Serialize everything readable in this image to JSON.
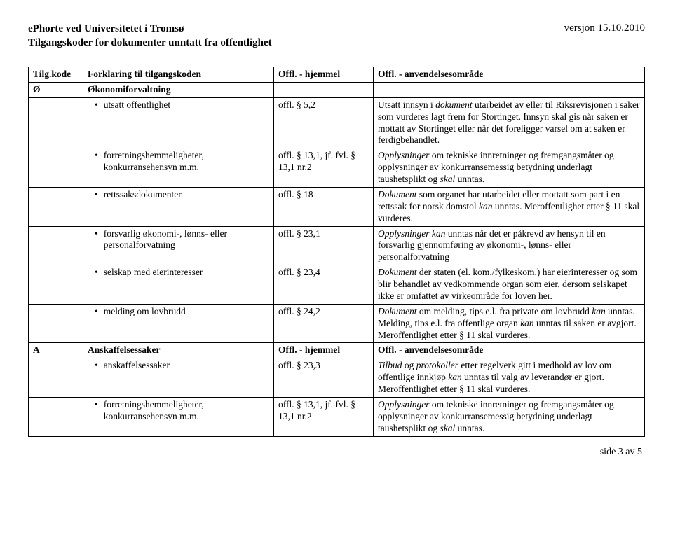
{
  "header": {
    "line1": "ePhorte ved Universitetet i Tromsø",
    "line2": "Tilgangskoder for dokumenter unntatt fra offentlighet",
    "version": "versjon 15.10.2010"
  },
  "columns": {
    "c1": "Tilg.kode",
    "c2": "Forklaring til tilgangskoden",
    "c3": "Offl. - hjemmel",
    "c4": "Offl. - anvendelsesområde"
  },
  "sections": [
    {
      "code": "Ø",
      "title": "Økonomiforvaltning",
      "rows": [
        {
          "bullet": "utsatt offentlighet",
          "hjemmel": "offl. § 5,2",
          "omraade_html": "Utsatt innsyn i <span class=\"italic\">dokument</span> utarbeidet av eller til Riksrevisjonen i saker som vurderes lagt frem for Stortinget. Innsyn skal gis når saken er mottatt av Stortinget eller når det foreligger varsel om at saken er ferdigbehandlet."
        },
        {
          "bullet": "forretningshemmeligheter, konkurransehensyn m.m.",
          "hjemmel": "offl. § 13,1, jf. fvl. § 13,1 nr.2",
          "omraade_html": "<span class=\"italic\">Opplysninger</span> om tekniske innretninger og fremgangsmåter og opplysninger av konkurransemessig betydning underlagt taushetsplikt og <span class=\"italic\">skal</span> unntas."
        },
        {
          "bullet": "rettssaksdokumenter",
          "hjemmel": "offl. § 18",
          "omraade_html": "<span class=\"italic\">Dokument</span> som organet har utarbeidet eller mottatt som part i en rettssak for norsk domstol <span class=\"italic\">kan</span> unntas. Meroffentlighet etter § 11 skal vurderes."
        },
        {
          "bullet": "forsvarlig økonomi-, lønns- eller personalforvatning",
          "hjemmel": "offl. § 23,1",
          "omraade_html": "<span class=\"italic\">Opplysninger kan</span> unntas når det er påkrevd av hensyn til en forsvarlig gjennomføring av økonomi-, lønns- eller personalforvatning"
        },
        {
          "bullet": "selskap med eierinteresser",
          "hjemmel": "offl. § 23,4",
          "omraade_html": "<span class=\"italic\">Dokument</span> der staten (el. kom./fylkeskom.) har eierinteresser og som blir behandlet av vedkommende organ som eier, dersom selskapet ikke er omfattet av virkeområde for loven her."
        },
        {
          "bullet": "melding om lovbrudd",
          "hjemmel": "offl. § 24,2",
          "omraade_html": "<span class=\"italic\">Dokument</span> om melding, tips e.l. fra private om lovbrudd <span class=\"italic\">kan</span> unntas. Melding, tips e.l. fra offentlige organ <span class=\"italic\">kan</span> unntas til saken er avgjort. Meroffentlighet etter § 11 skal vurderes."
        }
      ]
    },
    {
      "code": "A",
      "title": "Anskaffelsessaker",
      "hjemmel_header": "Offl. - hjemmel",
      "omraade_header": "Offl. - anvendelsesområde",
      "rows": [
        {
          "bullet": "anskaffelsessaker",
          "hjemmel": "offl. § 23,3",
          "omraade_html": "<span class=\"italic\">Tilbud</span> og <span class=\"italic\">protokoller</span> etter regelverk gitt i medhold av lov om offentlige innkjøp <span class=\"italic\">kan</span> unntas til valg av leverandør er gjort. Meroffentlighet etter § 11 skal vurderes."
        },
        {
          "bullet": "forretningshemmeligheter, konkurransehensyn m.m.",
          "hjemmel": "offl. § 13,1, jf. fvl. § 13,1 nr.2",
          "omraade_html": "<span class=\"italic\">Opplysninger</span> om tekniske innretninger og fremgangsmåter og opplysninger av konkurransemessig betydning underlagt taushetsplikt og <span class=\"italic\">skal</span> unntas."
        }
      ]
    }
  ],
  "footer": "side 3 av 5"
}
